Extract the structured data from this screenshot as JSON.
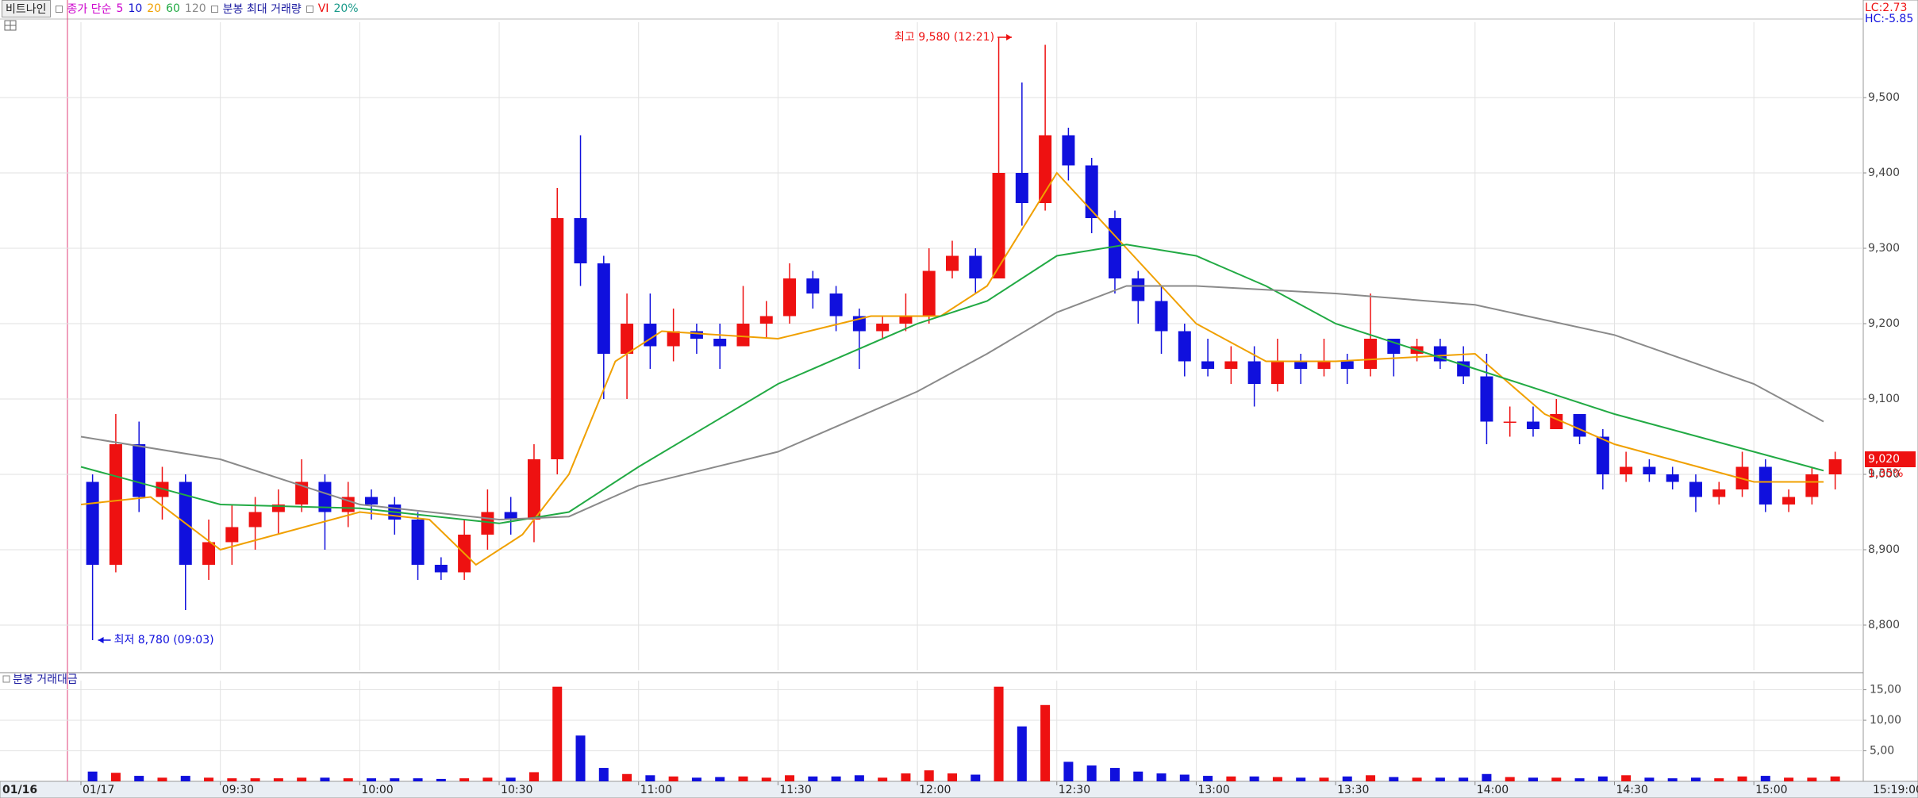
{
  "header": {
    "stock": "비트나인",
    "ma_title": "종가 단순",
    "max_volume": "분봉 최대 거래량",
    "vi": "VI",
    "vi_pct": "20%",
    "lc": "LC:2.73",
    "hc": "HC:-5.85",
    "prev_date": "01/16",
    "time_label": "15:19:00"
  },
  "chart_data": [
    {
      "type": "candlestick",
      "x": [
        "09:00",
        "09:05",
        "09:10",
        "09:15",
        "09:20",
        "09:25",
        "09:30",
        "09:35",
        "09:40",
        "09:45",
        "09:50",
        "09:55",
        "10:00",
        "10:05",
        "10:10",
        "10:15",
        "10:20",
        "10:25",
        "10:30",
        "10:35",
        "10:40",
        "10:45",
        "10:50",
        "10:55",
        "11:00",
        "11:05",
        "11:10",
        "11:15",
        "11:20",
        "11:25",
        "11:30",
        "11:35",
        "11:40",
        "11:45",
        "11:50",
        "11:55",
        "12:00",
        "12:05",
        "12:10",
        "12:15",
        "12:20",
        "12:25",
        "12:30",
        "12:35",
        "12:40",
        "12:45",
        "12:50",
        "12:55",
        "13:00",
        "13:05",
        "13:10",
        "13:15",
        "13:20",
        "13:25",
        "13:30",
        "13:35",
        "13:40",
        "13:45",
        "13:50",
        "13:55",
        "14:00",
        "14:05",
        "14:10",
        "14:15",
        "14:20",
        "14:25",
        "14:30",
        "14:35",
        "14:40",
        "14:45",
        "14:50",
        "14:55",
        "15:00",
        "15:05",
        "15:10",
        "15:15"
      ],
      "open": [
        8990,
        8880,
        9040,
        8970,
        8990,
        8880,
        8910,
        8930,
        8950,
        8960,
        8990,
        8950,
        8970,
        8960,
        8940,
        8880,
        8870,
        8920,
        8950,
        8940,
        9020,
        9340,
        9280,
        9160,
        9200,
        9170,
        9190,
        9180,
        9170,
        9200,
        9210,
        9260,
        9240,
        9210,
        9190,
        9200,
        9210,
        9270,
        9290,
        9260,
        9400,
        9360,
        9450,
        9410,
        9340,
        9260,
        9230,
        9190,
        9150,
        9140,
        9150,
        9120,
        9150,
        9140,
        9150,
        9140,
        9180,
        9160,
        9170,
        9150,
        9130,
        9070,
        9070,
        9060,
        9080,
        9050,
        9000,
        9010,
        9000,
        8990,
        8970,
        8980,
        9010,
        8960,
        8970,
        9000
      ],
      "high": [
        9000,
        9080,
        9070,
        9010,
        9000,
        8940,
        8960,
        8970,
        8980,
        9020,
        9000,
        8990,
        8980,
        8970,
        8950,
        8890,
        8940,
        8980,
        8970,
        9040,
        9380,
        9450,
        9290,
        9240,
        9240,
        9220,
        9200,
        9200,
        9250,
        9230,
        9280,
        9270,
        9250,
        9220,
        9210,
        9240,
        9300,
        9310,
        9300,
        9580,
        9520,
        9570,
        9460,
        9420,
        9350,
        9270,
        9250,
        9200,
        9180,
        9170,
        9170,
        9180,
        9160,
        9180,
        9160,
        9240,
        9180,
        9180,
        9180,
        9170,
        9160,
        9090,
        9090,
        9100,
        9080,
        9060,
        9030,
        9020,
        9010,
        9000,
        8990,
        9030,
        9020,
        8980,
        9010,
        9030
      ],
      "low": [
        8780,
        8870,
        8950,
        8940,
        8820,
        8860,
        8880,
        8900,
        8920,
        8950,
        8900,
        8930,
        8940,
        8920,
        8860,
        8860,
        8860,
        8900,
        8920,
        8910,
        9000,
        9250,
        9100,
        9100,
        9140,
        9150,
        9160,
        9140,
        9170,
        9180,
        9200,
        9220,
        9190,
        9140,
        9180,
        9190,
        9200,
        9260,
        9240,
        9260,
        9330,
        9350,
        9390,
        9320,
        9240,
        9200,
        9160,
        9130,
        9130,
        9120,
        9090,
        9110,
        9120,
        9130,
        9120,
        9130,
        9130,
        9150,
        9140,
        9120,
        9040,
        9050,
        9050,
        9060,
        9040,
        8980,
        8990,
        8990,
        8980,
        8950,
        8960,
        8970,
        8950,
        8950,
        8960,
        8980
      ],
      "close": [
        8880,
        9040,
        8970,
        8990,
        8880,
        8910,
        8930,
        8950,
        8960,
        8990,
        8950,
        8970,
        8960,
        8940,
        8880,
        8870,
        8920,
        8950,
        8940,
        9020,
        9340,
        9280,
        9160,
        9200,
        9170,
        9190,
        9180,
        9170,
        9200,
        9210,
        9260,
        9240,
        9210,
        9190,
        9200,
        9210,
        9270,
        9290,
        9260,
        9400,
        9360,
        9450,
        9410,
        9340,
        9260,
        9230,
        9190,
        9150,
        9140,
        9150,
        9120,
        9150,
        9140,
        9150,
        9140,
        9180,
        9160,
        9170,
        9150,
        9130,
        9070,
        9070,
        9060,
        9080,
        9050,
        9000,
        9010,
        9000,
        8990,
        8970,
        8980,
        9010,
        8960,
        8970,
        9000,
        9020
      ],
      "up_color": "#ee1111",
      "down_color": "#1010dd",
      "ylim": [
        8740,
        9600
      ],
      "yticks": [
        {
          "value": 8800,
          "label": "8,800"
        },
        {
          "value": 8900,
          "label": "8,900"
        },
        {
          "value": 9000,
          "label": "9,000"
        },
        {
          "value": 9100,
          "label": "9,100"
        },
        {
          "value": 9200,
          "label": "9,200"
        },
        {
          "value": 9300,
          "label": "9,300"
        },
        {
          "value": 9400,
          "label": "9,400"
        },
        {
          "value": 9500,
          "label": "9,500"
        }
      ],
      "xticks": [
        {
          "value": "09:00",
          "label": "01/17"
        },
        {
          "value": "09:30",
          "label": "09:30"
        },
        {
          "value": "10:00",
          "label": "10:00"
        },
        {
          "value": "10:30",
          "label": "10:30"
        },
        {
          "value": "11:00",
          "label": "11:00"
        },
        {
          "value": "11:30",
          "label": "11:30"
        },
        {
          "value": "12:00",
          "label": "12:00"
        },
        {
          "value": "12:30",
          "label": "12:30"
        },
        {
          "value": "13:00",
          "label": "13:00"
        },
        {
          "value": "13:30",
          "label": "13:30"
        },
        {
          "value": "14:00",
          "label": "14:00"
        },
        {
          "value": "14:30",
          "label": "14:30"
        },
        {
          "value": "15:00",
          "label": "15:00"
        }
      ],
      "grid": true,
      "extra_legend": [
        {
          "name": "5",
          "color": "#cc00cc"
        },
        {
          "name": "10",
          "color": "#1010cc"
        }
      ],
      "series": [
        {
          "name": "20",
          "color": "#f0a000",
          "x": [
            "09:00",
            "09:15",
            "09:30",
            "10:00",
            "10:15",
            "10:25",
            "10:35",
            "10:45",
            "10:55",
            "11:05",
            "11:30",
            "11:50",
            "12:05",
            "12:15",
            "12:30",
            "12:45",
            "13:00",
            "13:15",
            "13:30",
            "14:00",
            "14:15",
            "14:30",
            "15:00",
            "15:15"
          ],
          "values": [
            8960,
            8970,
            8900,
            8950,
            8940,
            8880,
            8920,
            9000,
            9150,
            9190,
            9180,
            9210,
            9210,
            9250,
            9400,
            9300,
            9200,
            9150,
            9150,
            9160,
            9080,
            9040,
            8990,
            8990
          ]
        },
        {
          "name": "60",
          "color": "#22aa44",
          "x": [
            "09:00",
            "09:30",
            "10:00",
            "10:30",
            "10:45",
            "11:00",
            "11:30",
            "12:00",
            "12:15",
            "12:30",
            "12:45",
            "13:00",
            "13:15",
            "13:30",
            "14:00",
            "14:30",
            "15:00",
            "15:15"
          ],
          "values": [
            9010,
            8960,
            8955,
            8935,
            8950,
            9010,
            9120,
            9200,
            9230,
            9290,
            9305,
            9290,
            9250,
            9200,
            9140,
            9080,
            9030,
            9005
          ]
        },
        {
          "name": "120",
          "color": "#8a8a8a",
          "x": [
            "09:00",
            "09:30",
            "10:00",
            "10:30",
            "10:45",
            "11:00",
            "11:30",
            "12:00",
            "12:15",
            "12:30",
            "12:45",
            "13:00",
            "13:30",
            "14:00",
            "14:30",
            "15:00",
            "15:15"
          ],
          "values": [
            9050,
            9020,
            8960,
            8940,
            8944,
            8985,
            9030,
            9110,
            9160,
            9215,
            9250,
            9250,
            9240,
            9225,
            9185,
            9120,
            9070
          ]
        }
      ],
      "annotations": [
        {
          "text": "최고 9,580 (12:21)",
          "x": "12:21",
          "value": 9580,
          "color": "#ee1111",
          "align": "left"
        },
        {
          "text": "최저 8,780 (09:03)",
          "x": "09:03",
          "value": 8780,
          "color": "#1010dd",
          "align": "right"
        }
      ],
      "current_price": {
        "value": 9020,
        "label": "9,020"
      },
      "change": "1.35%"
    },
    {
      "type": "bar",
      "title": "분봉 거래대금",
      "values": [
        1.6,
        1.4,
        0.9,
        0.6,
        0.9,
        0.6,
        0.5,
        0.5,
        0.5,
        0.6,
        0.6,
        0.5,
        0.5,
        0.5,
        0.5,
        0.4,
        0.5,
        0.6,
        0.6,
        1.5,
        15.5,
        7.5,
        2.2,
        1.2,
        1.0,
        0.8,
        0.6,
        0.7,
        0.8,
        0.6,
        1.0,
        0.8,
        0.8,
        1.0,
        0.6,
        1.3,
        1.8,
        1.3,
        1.1,
        15.5,
        9.0,
        12.5,
        3.2,
        2.6,
        2.2,
        1.6,
        1.3,
        1.1,
        0.9,
        0.8,
        0.8,
        0.7,
        0.6,
        0.6,
        0.8,
        1.0,
        0.7,
        0.6,
        0.6,
        0.6,
        1.2,
        0.7,
        0.6,
        0.6,
        0.5,
        0.8,
        1.0,
        0.6,
        0.5,
        0.6,
        0.5,
        0.8,
        0.9,
        0.6,
        0.6,
        0.8
      ],
      "ylim": [
        0,
        16.5
      ],
      "yticks": [
        {
          "value": 5,
          "label": "5,00"
        },
        {
          "value": 10,
          "label": "10,00"
        },
        {
          "value": 15,
          "label": "15,00"
        }
      ],
      "grid": true
    }
  ]
}
